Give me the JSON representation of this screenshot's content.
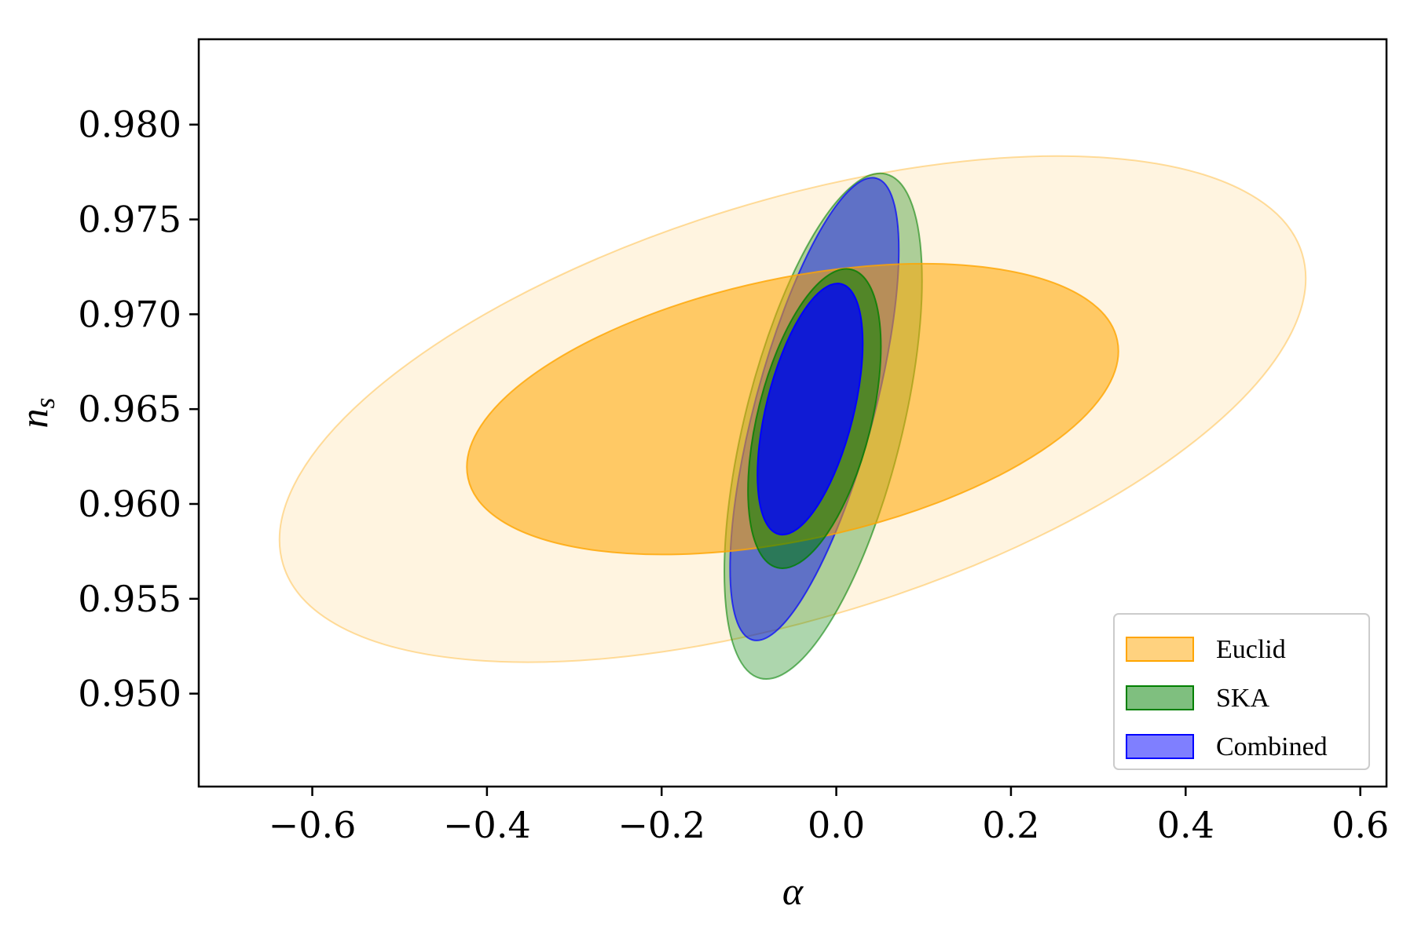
{
  "chart_data": {
    "type": "contour",
    "xlabel": "α",
    "ylabel": "n",
    "ylabel_subscript": "s",
    "xlim": [
      -0.73,
      0.63
    ],
    "ylim": [
      0.9451,
      0.9845
    ],
    "xticks": [
      -0.6,
      -0.4,
      -0.2,
      0.0,
      0.2,
      0.4,
      0.6
    ],
    "xtick_labels": [
      "−0.6",
      "−0.4",
      "−0.2",
      "0.0",
      "0.2",
      "0.4",
      "0.6"
    ],
    "yticks": [
      0.95,
      0.955,
      0.96,
      0.965,
      0.97,
      0.975,
      0.98
    ],
    "ytick_labels": [
      "0.950",
      "0.955",
      "0.960",
      "0.965",
      "0.970",
      "0.975",
      "0.980"
    ],
    "grid": false,
    "legend_position": "bottom-right",
    "series": [
      {
        "name": "Euclid",
        "color": "#FFA500",
        "contours": [
          {
            "level": "2-sigma",
            "center": [
              -0.05,
              0.965
            ],
            "rx": 0.61,
            "ry": 0.011,
            "rotation_deg": -17,
            "opacity": 0.12
          },
          {
            "level": "1-sigma",
            "center": [
              -0.05,
              0.965
            ],
            "rx": 0.38,
            "ry": 0.0069,
            "rotation_deg": -12,
            "opacity": 0.55
          }
        ]
      },
      {
        "name": "SKA",
        "color": "#008000",
        "contours": [
          {
            "level": "2-sigma",
            "center": [
              -0.015,
              0.9641
            ],
            "rx": 0.09,
            "ry": 0.0137,
            "rotation_deg": 14,
            "opacity": 0.32
          },
          {
            "level": "1-sigma",
            "center": [
              -0.025,
              0.9645
            ],
            "rx": 0.065,
            "ry": 0.0081,
            "rotation_deg": 14,
            "opacity": 0.55
          }
        ]
      },
      {
        "name": "Combined",
        "color": "#0000FF",
        "contours": [
          {
            "level": "2-sigma",
            "center": [
              -0.025,
              0.965
            ],
            "rx": 0.068,
            "ry": 0.0126,
            "rotation_deg": 15,
            "opacity": 0.45
          },
          {
            "level": "1-sigma",
            "center": [
              -0.03,
              0.965
            ],
            "rx": 0.05,
            "ry": 0.0068,
            "rotation_deg": 14,
            "opacity": 0.8
          }
        ]
      }
    ],
    "legend": [
      "Euclid",
      "SKA",
      "Combined"
    ]
  }
}
